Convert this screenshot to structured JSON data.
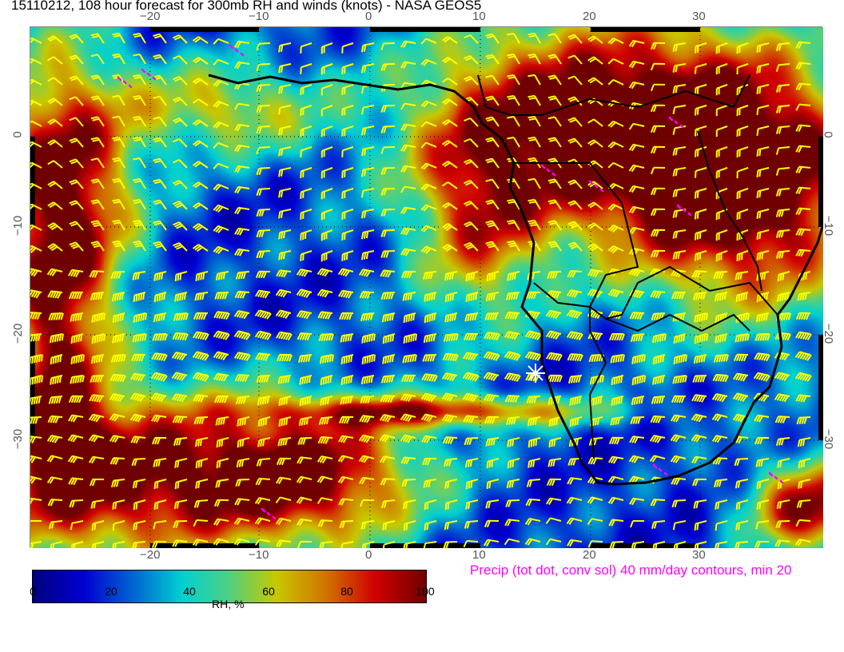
{
  "title": "15110212, 108 hour forecast for 300mb RH and winds (knots) - NASA GEOS5",
  "map": {
    "lon_ticks": [
      "−20",
      "−10",
      "0",
      "10",
      "20",
      "30"
    ],
    "lat_ticks": [
      "0",
      "−10",
      "−20",
      "−30"
    ],
    "lon_range": [
      -31,
      41
    ],
    "lat_range": [
      10.5,
      -40
    ],
    "wind_barb_color": "#ffff00",
    "precip_contour_color": "#ff00ff",
    "coastline_color": "#000000",
    "marker": "white-star-near-15E-24S"
  },
  "precip_note": "Precip (tot dot, conv sol) 40 mm/day contours, min 20",
  "colorbar": {
    "label": "RH, %",
    "ticks": [
      "0",
      "20",
      "40",
      "60",
      "80",
      "100"
    ],
    "range": [
      0,
      100
    ],
    "colors": [
      "#00007f",
      "#0000d0",
      "#00d0d0",
      "#c8c800",
      "#d00000",
      "#700000"
    ]
  }
}
